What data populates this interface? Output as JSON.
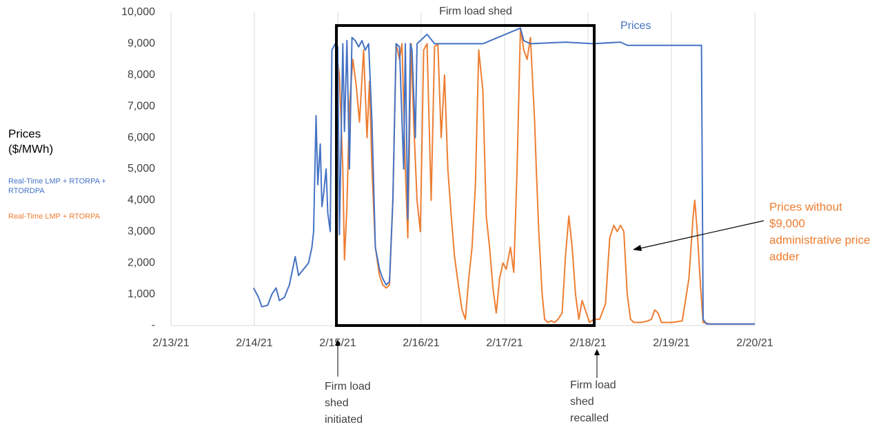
{
  "chart_data": {
    "type": "line",
    "title": "Firm load shed",
    "y_label_lines": [
      "Prices",
      "($/MWh)"
    ],
    "xlim": [
      0,
      7
    ],
    "xticks": [
      {
        "value": 0,
        "label": "2/13/21"
      },
      {
        "value": 1,
        "label": "2/14/21"
      },
      {
        "value": 2,
        "label": "2/15/21"
      },
      {
        "value": 3,
        "label": "2/16/21"
      },
      {
        "value": 4,
        "label": "2/17/21"
      },
      {
        "value": 5,
        "label": "2/18/21"
      },
      {
        "value": 6,
        "label": "2/19/21"
      },
      {
        "value": 7,
        "label": "2/20/21"
      }
    ],
    "ylim": [
      0,
      10000
    ],
    "yticks": [
      {
        "value": 0,
        "label": "-"
      },
      {
        "value": 1000,
        "label": "1,000"
      },
      {
        "value": 2000,
        "label": "2,000"
      },
      {
        "value": 3000,
        "label": "3,000"
      },
      {
        "value": 4000,
        "label": "4,000"
      },
      {
        "value": 5000,
        "label": "5,000"
      },
      {
        "value": 6000,
        "label": "6,000"
      },
      {
        "value": 7000,
        "label": "7,000"
      },
      {
        "value": 8000,
        "label": "8,000"
      },
      {
        "value": 9000,
        "label": "9,000"
      },
      {
        "value": 10000,
        "label": "10,000"
      }
    ],
    "grid": "vertical",
    "series": [
      {
        "name": "Real-Time LMP + RTORPA + RTORDPA",
        "color": "#4472c4",
        "x": [
          0.99,
          1.05,
          1.09,
          1.16,
          1.21,
          1.26,
          1.3,
          1.36,
          1.42,
          1.49,
          1.53,
          1.59,
          1.65,
          1.69,
          1.71,
          1.74,
          1.76,
          1.79,
          1.81,
          1.83,
          1.86,
          1.88,
          1.91,
          1.93,
          1.97,
          2.0,
          2.02,
          2.06,
          2.08,
          2.11,
          2.14,
          2.17,
          2.21,
          2.25,
          2.29,
          2.33,
          2.37,
          2.41,
          2.45,
          2.5,
          2.54,
          2.58,
          2.62,
          2.66,
          2.7,
          2.74,
          2.79,
          2.81,
          2.84,
          2.87,
          2.89,
          2.93,
          2.95,
          2.99,
          3.07,
          3.16,
          3.74,
          4.19,
          4.23,
          4.31,
          4.73,
          5.06,
          5.39,
          5.47,
          6.36,
          6.38,
          6.42,
          7.0
        ],
        "values": [
          1200,
          900,
          600,
          650,
          1000,
          1200,
          800,
          900,
          1300,
          2200,
          1600,
          1800,
          2000,
          2500,
          3000,
          6700,
          4500,
          5800,
          3800,
          4200,
          5000,
          3600,
          3000,
          8800,
          9000,
          8900,
          2900,
          9000,
          6200,
          9100,
          5000,
          9200,
          9100,
          8900,
          9100,
          8800,
          9000,
          6500,
          2500,
          1800,
          1500,
          1300,
          1400,
          4000,
          9000,
          8900,
          5000,
          9000,
          3400,
          9000,
          8800,
          6000,
          9000,
          9100,
          9300,
          9000,
          9000,
          9500,
          9100,
          9000,
          9050,
          9000,
          9050,
          8950,
          8950,
          200,
          50,
          50
        ]
      },
      {
        "name": "Real-Time LMP + RTORPA",
        "color": "#ed7d31",
        "x": [
          1.98,
          2.02,
          2.06,
          2.08,
          2.11,
          2.14,
          2.18,
          2.22,
          2.26,
          2.31,
          2.35,
          2.38,
          2.41,
          2.45,
          2.5,
          2.54,
          2.58,
          2.62,
          2.66,
          2.7,
          2.74,
          2.77,
          2.81,
          2.84,
          2.88,
          2.91,
          2.95,
          2.99,
          3.03,
          3.07,
          3.12,
          3.16,
          3.2,
          3.24,
          3.28,
          3.32,
          3.36,
          3.4,
          3.45,
          3.49,
          3.53,
          3.57,
          3.61,
          3.65,
          3.69,
          3.74,
          3.78,
          3.82,
          3.86,
          3.9,
          3.94,
          3.98,
          4.02,
          4.07,
          4.11,
          4.15,
          4.19,
          4.23,
          4.27,
          4.31,
          4.36,
          4.38,
          4.41,
          4.45,
          4.48,
          4.52,
          4.56,
          4.6,
          4.64,
          4.69,
          4.73,
          4.77,
          4.81,
          4.85,
          4.89,
          4.93,
          4.98,
          5.02,
          5.07,
          5.14,
          5.21,
          5.26,
          5.31,
          5.35,
          5.39,
          5.43,
          5.47,
          5.51,
          5.55,
          5.64,
          5.72,
          5.76,
          5.8,
          5.84,
          5.88,
          6.01,
          6.13,
          6.21,
          6.26,
          6.28,
          6.31,
          6.35,
          6.38,
          6.46,
          7.0
        ],
        "values": [
          8800,
          8000,
          5000,
          2100,
          3800,
          7000,
          8500,
          7700,
          6500,
          8800,
          6000,
          7800,
          5000,
          2500,
          1600,
          1300,
          1200,
          1300,
          4000,
          9000,
          8500,
          9000,
          5000,
          2800,
          9000,
          6500,
          4000,
          3000,
          8800,
          9000,
          4000,
          8900,
          9000,
          6000,
          8000,
          5000,
          3500,
          2200,
          1200,
          500,
          200,
          1500,
          2500,
          4500,
          8800,
          7500,
          3500,
          2500,
          1200,
          400,
          1500,
          2000,
          1800,
          2500,
          1700,
          5000,
          9500,
          8800,
          8500,
          9200,
          6500,
          5000,
          3000,
          1000,
          200,
          100,
          150,
          100,
          200,
          400,
          2200,
          3500,
          2500,
          1000,
          200,
          800,
          400,
          100,
          200,
          200,
          700,
          2800,
          3200,
          3000,
          3200,
          3000,
          1000,
          200,
          100,
          100,
          150,
          200,
          500,
          400,
          100,
          100,
          150,
          1500,
          3500,
          4000,
          3000,
          1200,
          100,
          50,
          50
        ]
      }
    ],
    "annotations": [
      {
        "lines": [
          "Prices"
        ],
        "color": "#4472c4"
      },
      {
        "lines": [
          "Prices without",
          "$9,000",
          "administrative price",
          "adder"
        ],
        "color": "#ed7d31"
      },
      {
        "lines": [
          "Firm load",
          "shed",
          "initiated"
        ],
        "color": "#404040"
      },
      {
        "lines": [
          "Firm load",
          "shed",
          "recalled"
        ],
        "color": "#404040"
      }
    ]
  }
}
